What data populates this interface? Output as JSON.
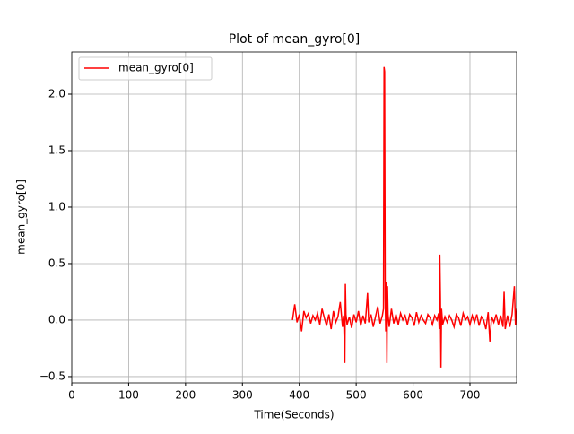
{
  "chart_data": {
    "type": "line",
    "title": "Plot of mean_gyro[0]",
    "x_label": "Time(Seconds)",
    "y_label": "mean_gyro[0]",
    "x": [
      388,
      392,
      396,
      400,
      404,
      408,
      412,
      416,
      420,
      424,
      428,
      432,
      436,
      440,
      444,
      448,
      452,
      456,
      460,
      464,
      468,
      472,
      476,
      478,
      480,
      481,
      482,
      484,
      488,
      492,
      496,
      500,
      504,
      508,
      512,
      516,
      518,
      520,
      522,
      526,
      530,
      534,
      538,
      542,
      546,
      548,
      549,
      550,
      551,
      552,
      553,
      554,
      555,
      556,
      558,
      562,
      566,
      570,
      574,
      578,
      582,
      586,
      590,
      594,
      598,
      602,
      606,
      610,
      614,
      618,
      622,
      626,
      630,
      634,
      638,
      642,
      645,
      646,
      647,
      648,
      649,
      650,
      652,
      656,
      660,
      664,
      668,
      672,
      676,
      680,
      684,
      688,
      692,
      696,
      700,
      704,
      708,
      712,
      716,
      720,
      724,
      728,
      732,
      735,
      738,
      742,
      746,
      750,
      754,
      758,
      760,
      762,
      766,
      770,
      774,
      778,
      780,
      782
    ],
    "series": [
      {
        "name": "mean_gyro[0]",
        "color": "#ff0000",
        "values": [
          0.0,
          0.14,
          -0.02,
          0.05,
          -0.1,
          0.08,
          0.02,
          0.06,
          -0.03,
          0.04,
          0.0,
          0.06,
          -0.04,
          0.1,
          0.02,
          -0.05,
          0.05,
          -0.08,
          0.08,
          -0.02,
          0.03,
          0.16,
          -0.06,
          0.04,
          -0.38,
          0.32,
          0.05,
          -0.04,
          0.03,
          -0.07,
          0.05,
          -0.02,
          0.08,
          -0.05,
          0.04,
          -0.03,
          0.1,
          0.24,
          -0.02,
          0.05,
          -0.06,
          0.03,
          0.12,
          -0.03,
          0.04,
          0.1,
          2.24,
          2.2,
          0.2,
          -0.1,
          0.34,
          -0.38,
          0.3,
          0.05,
          -0.06,
          0.1,
          -0.03,
          0.05,
          -0.04,
          0.06,
          0.0,
          0.04,
          -0.04,
          0.05,
          0.02,
          -0.05,
          0.07,
          -0.02,
          0.04,
          0.0,
          -0.03,
          0.05,
          0.02,
          -0.04,
          0.04,
          0.0,
          0.06,
          -0.08,
          0.58,
          0.2,
          -0.42,
          0.1,
          -0.04,
          0.03,
          -0.02,
          0.04,
          0.0,
          -0.06,
          0.05,
          0.02,
          -0.05,
          0.06,
          0.0,
          0.03,
          -0.04,
          0.04,
          -0.02,
          0.05,
          -0.05,
          0.03,
          0.0,
          -0.08,
          0.07,
          -0.19,
          0.03,
          -0.02,
          0.05,
          -0.04,
          0.04,
          -0.06,
          0.25,
          -0.08,
          0.04,
          -0.06,
          0.05,
          0.3,
          -0.04,
          0.1
        ]
      }
    ],
    "xlim": [
      0,
      782
    ],
    "xticks": [
      0,
      100,
      200,
      300,
      400,
      500,
      600,
      700
    ],
    "ylim": [
      -0.556,
      2.373
    ],
    "yticks": [
      {
        "value": -0.5,
        "label": "−0.5"
      },
      {
        "value": 0.0,
        "label": "0.0"
      },
      {
        "value": 0.5,
        "label": "0.5"
      },
      {
        "value": 1.0,
        "label": "1.0"
      },
      {
        "value": 1.5,
        "label": "1.5"
      },
      {
        "value": 2.0,
        "label": "2.0"
      }
    ],
    "grid": true,
    "legend": "upper-left"
  }
}
